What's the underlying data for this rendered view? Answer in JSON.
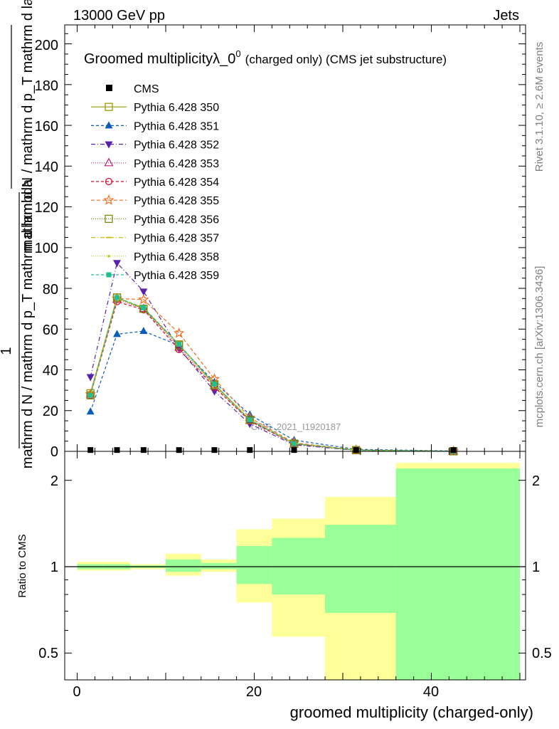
{
  "header": {
    "left": "13000 GeV pp",
    "right": "Jets"
  },
  "side_labels": {
    "rivet": "Rivet 3.1.10, ≥ 2.6M events",
    "mcplots": "mcplots.cern.ch [arXiv:1306.3436]"
  },
  "watermark": "CMS_2021_I1920187",
  "chart_data": {
    "type": "line",
    "title_main": "Groomed multiplicity",
    "title_lambda": "λ_0",
    "title_sup": "0",
    "title_rest": "(charged only) (CMS jet substructure)",
    "ylabel_upper": "mathrm d N / mathrm d p_T mathrm d lambda",
    "ylabel_lower": "mathrm d N / mathrm d p_T mathrm d lambda",
    "ylabel_one": "1",
    "ylabel_ratio": "Ratio to CMS",
    "xlabel": "groomed multiplicity (charged-only)",
    "xlim": [
      -1,
      51
    ],
    "ylim_main": [
      0,
      210
    ],
    "ylim_ratio": [
      0.35,
      2.3
    ],
    "x_ticks": [
      "0",
      "20",
      "40"
    ],
    "y_ticks_main": [
      "0",
      "20",
      "40",
      "60",
      "80",
      "100",
      "120",
      "140",
      "160",
      "180",
      "200"
    ],
    "y_ticks_ratio": [
      "0.5",
      "1",
      "2"
    ],
    "x": [
      1.5,
      4.5,
      7.5,
      11.5,
      15.5,
      19.5,
      24.5,
      31.5,
      42.5
    ],
    "bin_edges": [
      0,
      3,
      6,
      10,
      14,
      18,
      22,
      28,
      36,
      50
    ],
    "cms": {
      "name": "CMS",
      "values": [
        0.3,
        0.3,
        0.3,
        0.3,
        0.3,
        0.3,
        0.3,
        0.3,
        0.3
      ],
      "band_inner_lo": [
        0.98,
        0.98,
        0.99,
        0.96,
        0.98,
        0.87,
        0.8,
        0.69,
        0.35
      ],
      "band_inner_hi": [
        1.02,
        1.02,
        1.01,
        1.06,
        1.03,
        1.18,
        1.26,
        1.4,
        2.2
      ],
      "band_outer_lo": [
        0.97,
        0.97,
        0.98,
        0.93,
        0.96,
        0.75,
        0.57,
        0.35,
        0.35
      ],
      "band_outer_hi": [
        1.04,
        1.04,
        1.02,
        1.11,
        1.06,
        1.35,
        1.47,
        1.75,
        2.3
      ]
    },
    "series": [
      {
        "name": "Pythia 6.428 350",
        "color": "#999900",
        "marker": "square-open",
        "dash": "",
        "values": [
          28.5,
          75.5,
          70.0,
          52.5,
          33.0,
          15.5,
          3.8,
          0.6,
          0.05
        ]
      },
      {
        "name": "Pythia 6.428 351",
        "color": "#0a5cb8",
        "marker": "triangle-up",
        "dash": "4,3",
        "values": [
          19.5,
          57.5,
          59.0,
          52.0,
          34.0,
          18.0,
          5.5,
          1.0,
          0.2
        ]
      },
      {
        "name": "Pythia 6.428 352",
        "color": "#5a22aa",
        "marker": "triangle-down",
        "dash": "6,3,1,3",
        "values": [
          36.5,
          92.5,
          78.5,
          50.5,
          29.5,
          13.5,
          3.2,
          0.5,
          0.05
        ]
      },
      {
        "name": "Pythia 6.428 353",
        "color": "#c0207a",
        "marker": "triangle-up-open",
        "dash": "1,2",
        "values": [
          28.0,
          74.5,
          70.0,
          51.0,
          32.0,
          15.0,
          3.6,
          0.6,
          0.05
        ]
      },
      {
        "name": "Pythia 6.428 354",
        "color": "#cc1133",
        "marker": "circle-open",
        "dash": "4,3",
        "values": [
          27.5,
          73.5,
          69.5,
          50.0,
          31.5,
          15.0,
          3.6,
          0.6,
          0.05
        ]
      },
      {
        "name": "Pythia 6.428 355",
        "color": "#f07020",
        "marker": "star-open",
        "dash": "5,3",
        "values": [
          28.0,
          75.0,
          74.5,
          58.0,
          35.5,
          16.5,
          4.2,
          0.7,
          0.05
        ]
      },
      {
        "name": "Pythia 6.428 356",
        "color": "#7a8a10",
        "marker": "square-open",
        "dash": "1,2",
        "values": [
          27.5,
          75.5,
          70.0,
          52.0,
          32.5,
          15.5,
          3.8,
          0.6,
          0.05
        ]
      },
      {
        "name": "Pythia 6.428 357",
        "color": "#ccc010",
        "marker": "dash",
        "dash": "6,3,1,3",
        "values": [
          27.5,
          75.0,
          70.5,
          52.5,
          32.5,
          15.5,
          3.8,
          0.6,
          0.05
        ]
      },
      {
        "name": "Pythia 6.428 358",
        "color": "#b0d020",
        "marker": "dot",
        "dash": "1,2",
        "values": [
          27.5,
          75.0,
          70.5,
          52.5,
          32.5,
          15.5,
          3.8,
          0.6,
          0.05
        ]
      },
      {
        "name": "Pythia 6.428 359",
        "color": "#20c090",
        "marker": "square",
        "dash": "4,3",
        "values": [
          27.5,
          75.5,
          70.5,
          52.5,
          33.0,
          15.5,
          3.8,
          0.6,
          0.05
        ]
      }
    ]
  }
}
